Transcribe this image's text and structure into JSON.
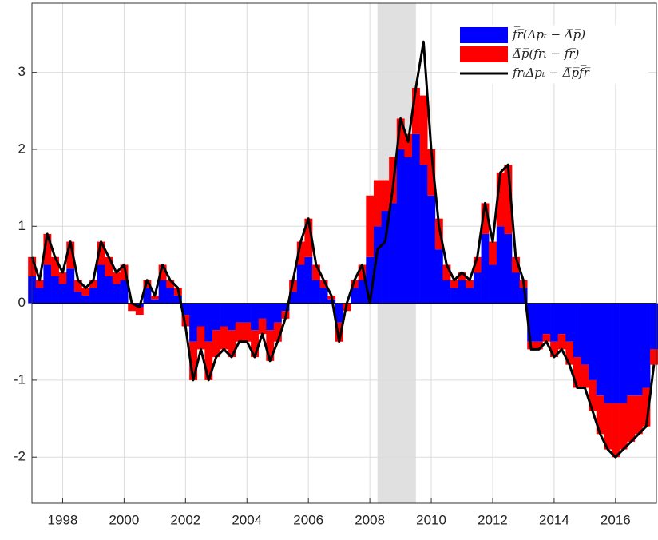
{
  "chart_data": {
    "type": "stacked-bar-line",
    "xlim": [
      1997,
      2017.33
    ],
    "ylim": [
      -2.6,
      3.9
    ],
    "xticks": [
      1998,
      2000,
      2002,
      2004,
      2006,
      2008,
      2010,
      2012,
      2014,
      2016
    ],
    "yticks": [
      -2,
      -1,
      0,
      1,
      2,
      3
    ],
    "grid": true,
    "legend": "top-right",
    "shaded_x": [
      2008.25,
      2009.5
    ],
    "shade_color": "#e0e0e0",
    "x": [
      1997,
      1997.25,
      1997.5,
      1997.75,
      1998,
      1998.25,
      1998.5,
      1998.75,
      1999,
      1999.25,
      1999.5,
      1999.75,
      2000,
      2000.25,
      2000.5,
      2000.75,
      2001,
      2001.25,
      2001.5,
      2001.75,
      2002,
      2002.25,
      2002.5,
      2002.75,
      2003,
      2003.25,
      2003.5,
      2003.75,
      2004,
      2004.25,
      2004.5,
      2004.75,
      2005,
      2005.25,
      2005.5,
      2005.75,
      2006,
      2006.25,
      2006.5,
      2006.75,
      2007,
      2007.25,
      2007.5,
      2007.75,
      2008,
      2008.25,
      2008.5,
      2008.75,
      2009,
      2009.25,
      2009.5,
      2009.75,
      2010,
      2010.25,
      2010.5,
      2010.75,
      2011,
      2011.25,
      2011.5,
      2011.75,
      2012,
      2012.25,
      2012.5,
      2012.75,
      2013,
      2013.25,
      2013.5,
      2013.75,
      2014,
      2014.25,
      2014.5,
      2014.75,
      2015,
      2015.25,
      2015.5,
      2015.75,
      2016,
      2016.25,
      2016.5,
      2016.75,
      2017,
      2017.25
    ],
    "series": [
      {
        "name": "f̅r̅(Δpₜ − Δ̅p̅)",
        "color": "#0000ff",
        "kind": "bar",
        "values": [
          0.35,
          0.2,
          0.5,
          0.35,
          0.25,
          0.45,
          0.15,
          0.1,
          0.2,
          0.5,
          0.35,
          0.25,
          0.3,
          0.0,
          -0.05,
          0.2,
          0.05,
          0.3,
          0.2,
          0.1,
          -0.15,
          -0.5,
          -0.3,
          -0.5,
          -0.35,
          -0.3,
          -0.35,
          -0.25,
          -0.25,
          -0.35,
          -0.2,
          -0.35,
          -0.25,
          -0.1,
          0.15,
          0.5,
          0.6,
          0.3,
          0.2,
          0.05,
          -0.25,
          0.0,
          0.2,
          0.3,
          0.6,
          1.0,
          1.2,
          1.3,
          2.0,
          1.9,
          2.2,
          1.8,
          1.4,
          0.7,
          0.3,
          0.2,
          0.3,
          0.2,
          0.4,
          0.9,
          0.5,
          1.0,
          0.9,
          0.4,
          0.2,
          -0.5,
          -0.5,
          -0.4,
          -0.5,
          -0.4,
          -0.5,
          -0.7,
          -0.8,
          -1.0,
          -1.2,
          -1.3,
          -1.3,
          -1.3,
          -1.2,
          -1.2,
          -1.1,
          -0.6
        ]
      },
      {
        "name": "Δ̅p̅(frₜ − f̅r̅)",
        "color": "#ff0000",
        "kind": "bar",
        "values": [
          0.25,
          0.1,
          0.4,
          0.25,
          0.15,
          0.35,
          0.15,
          0.1,
          0.1,
          0.3,
          0.25,
          0.15,
          0.2,
          -0.1,
          -0.1,
          0.1,
          0.05,
          0.2,
          0.1,
          0.1,
          -0.15,
          -0.5,
          -0.3,
          -0.5,
          -0.35,
          -0.3,
          -0.35,
          -0.25,
          -0.25,
          -0.35,
          -0.2,
          -0.4,
          -0.25,
          -0.1,
          0.15,
          0.3,
          0.5,
          0.2,
          0.1,
          0.05,
          -0.25,
          -0.1,
          0.1,
          0.2,
          0.8,
          0.6,
          0.4,
          0.6,
          0.4,
          0.3,
          0.6,
          0.9,
          0.6,
          0.4,
          0.2,
          0.1,
          0.1,
          0.1,
          0.2,
          0.4,
          0.3,
          0.7,
          0.9,
          0.2,
          0.1,
          -0.1,
          -0.1,
          -0.1,
          -0.2,
          -0.2,
          -0.3,
          -0.4,
          -0.3,
          -0.4,
          -0.5,
          -0.6,
          -0.7,
          -0.6,
          -0.6,
          -0.5,
          -0.5,
          -0.2
        ]
      },
      {
        "name": "frₜΔpₜ − Δ̅p̅f̅r̅",
        "color": "#000000",
        "kind": "line",
        "values": [
          0.6,
          0.3,
          0.9,
          0.6,
          0.4,
          0.8,
          0.3,
          0.2,
          0.3,
          0.8,
          0.6,
          0.4,
          0.5,
          0.0,
          -0.05,
          0.3,
          0.1,
          0.5,
          0.3,
          0.2,
          -0.3,
          -1.0,
          -0.6,
          -1.0,
          -0.7,
          -0.6,
          -0.7,
          -0.5,
          -0.5,
          -0.7,
          -0.4,
          -0.75,
          -0.5,
          -0.2,
          0.3,
          0.8,
          1.1,
          0.5,
          0.3,
          0.1,
          -0.5,
          0.0,
          0.3,
          0.5,
          0.0,
          0.7,
          0.8,
          1.5,
          2.4,
          2.1,
          2.8,
          3.4,
          2.0,
          1.0,
          0.5,
          0.3,
          0.4,
          0.3,
          0.6,
          1.3,
          0.8,
          1.7,
          1.8,
          0.6,
          0.3,
          -0.6,
          -0.6,
          -0.5,
          -0.7,
          -0.6,
          -0.8,
          -1.1,
          -1.1,
          -1.4,
          -1.7,
          -1.9,
          -2.0,
          -1.9,
          -1.8,
          -1.7,
          -1.6,
          -0.8
        ]
      }
    ]
  }
}
